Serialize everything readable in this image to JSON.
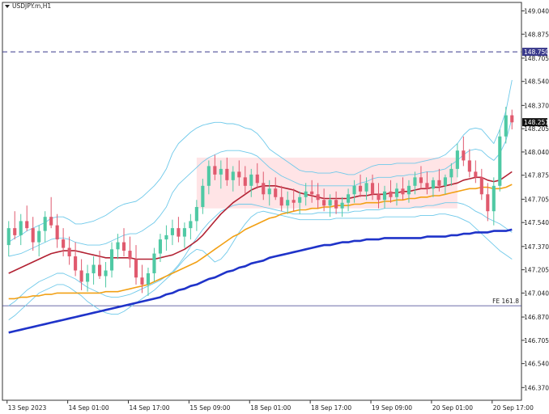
{
  "chart_data": {
    "type": "candlestick",
    "title": "USDJPY.m,H1",
    "price_labels": [
      "149.040",
      "148.875",
      "148.705",
      "148.540",
      "148.370",
      "148.205",
      "148.040",
      "147.875",
      "147.705",
      "147.540",
      "147.370",
      "147.205",
      "147.040",
      "146.870",
      "146.705",
      "146.540",
      "146.370"
    ],
    "price_values": [
      149.04,
      148.875,
      148.705,
      148.54,
      148.37,
      148.205,
      148.04,
      147.875,
      147.705,
      147.54,
      147.37,
      147.205,
      147.04,
      146.87,
      146.705,
      146.54,
      146.37
    ],
    "ylim": [
      146.28,
      149.1
    ],
    "time_labels": [
      "13 Sep 2023",
      "14 Sep 01:00",
      "14 Sep 17:00",
      "15 Sep 09:00",
      "18 Sep 01:00",
      "18 Sep 17:00",
      "19 Sep 09:00",
      "20 Sep 01:00",
      "20 Sep 17:00"
    ],
    "current_price": "148.251",
    "current_price_value": 148.251,
    "hline_level": "148.750",
    "hline_level_value": 148.75,
    "fib_label": "FE 161.8",
    "fib_value": 146.95,
    "ohlc": [
      [
        147.38,
        147.55,
        147.3,
        147.5
      ],
      [
        147.5,
        147.62,
        147.42,
        147.45
      ],
      [
        147.45,
        147.6,
        147.38,
        147.55
      ],
      [
        147.55,
        147.66,
        147.48,
        147.5
      ],
      [
        147.5,
        147.58,
        147.34,
        147.4
      ],
      [
        147.4,
        147.52,
        147.3,
        147.48
      ],
      [
        147.48,
        147.62,
        147.4,
        147.58
      ],
      [
        147.58,
        147.72,
        147.5,
        147.52
      ],
      [
        147.52,
        147.6,
        147.36,
        147.42
      ],
      [
        147.42,
        147.5,
        147.3,
        147.36
      ],
      [
        147.36,
        147.44,
        147.24,
        147.3
      ],
      [
        147.3,
        147.4,
        147.16,
        147.2
      ],
      [
        147.2,
        147.28,
        147.06,
        147.12
      ],
      [
        147.12,
        147.24,
        147.05,
        147.18
      ],
      [
        147.18,
        147.3,
        147.1,
        147.24
      ],
      [
        147.24,
        147.34,
        147.14,
        147.16
      ],
      [
        147.16,
        147.26,
        147.08,
        147.2
      ],
      [
        147.2,
        147.4,
        147.15,
        147.35
      ],
      [
        147.35,
        147.46,
        147.28,
        147.4
      ],
      [
        147.4,
        147.5,
        147.3,
        147.34
      ],
      [
        147.34,
        147.44,
        147.22,
        147.28
      ],
      [
        147.28,
        147.38,
        147.1,
        147.15
      ],
      [
        147.15,
        147.24,
        147.04,
        147.1
      ],
      [
        147.1,
        147.22,
        147.02,
        147.18
      ],
      [
        147.18,
        147.36,
        147.12,
        147.32
      ],
      [
        147.32,
        147.46,
        147.26,
        147.42
      ],
      [
        147.42,
        147.52,
        147.34,
        147.45
      ],
      [
        147.45,
        147.56,
        147.38,
        147.5
      ],
      [
        147.5,
        147.58,
        147.4,
        147.44
      ],
      [
        147.44,
        147.54,
        147.36,
        147.5
      ],
      [
        147.5,
        147.6,
        147.42,
        147.55
      ],
      [
        147.55,
        147.7,
        147.48,
        147.65
      ],
      [
        147.65,
        147.85,
        147.6,
        147.8
      ],
      [
        147.8,
        147.98,
        147.74,
        147.94
      ],
      [
        147.94,
        148.02,
        147.84,
        147.88
      ],
      [
        147.88,
        147.98,
        147.78,
        147.92
      ],
      [
        147.92,
        148.0,
        147.8,
        147.84
      ],
      [
        147.84,
        147.94,
        147.76,
        147.9
      ],
      [
        147.9,
        147.98,
        147.8,
        147.86
      ],
      [
        147.86,
        147.94,
        147.74,
        147.8
      ],
      [
        147.8,
        147.92,
        147.72,
        147.88
      ],
      [
        147.88,
        147.96,
        147.78,
        147.82
      ],
      [
        147.82,
        147.9,
        147.7,
        147.74
      ],
      [
        147.74,
        147.84,
        147.66,
        147.78
      ],
      [
        147.78,
        147.86,
        147.7,
        147.72
      ],
      [
        147.72,
        147.8,
        147.62,
        147.66
      ],
      [
        147.66,
        147.76,
        147.6,
        147.7
      ],
      [
        147.7,
        147.78,
        147.62,
        147.68
      ],
      [
        147.68,
        147.76,
        147.6,
        147.72
      ],
      [
        147.72,
        147.82,
        147.66,
        147.76
      ],
      [
        147.76,
        147.84,
        147.68,
        147.74
      ],
      [
        147.74,
        147.82,
        147.64,
        147.7
      ],
      [
        147.7,
        147.78,
        147.62,
        147.66
      ],
      [
        147.66,
        147.74,
        147.58,
        147.7
      ],
      [
        147.7,
        147.76,
        147.6,
        147.64
      ],
      [
        147.64,
        147.72,
        147.58,
        147.68
      ],
      [
        147.68,
        147.78,
        147.62,
        147.74
      ],
      [
        147.74,
        147.84,
        147.68,
        147.8
      ],
      [
        147.8,
        147.88,
        147.72,
        147.76
      ],
      [
        147.76,
        147.86,
        147.7,
        147.82
      ],
      [
        147.82,
        147.88,
        147.7,
        147.74
      ],
      [
        147.74,
        147.82,
        147.64,
        147.7
      ],
      [
        147.7,
        147.8,
        147.64,
        147.76
      ],
      [
        147.76,
        147.84,
        147.68,
        147.72
      ],
      [
        147.72,
        147.82,
        147.66,
        147.78
      ],
      [
        147.78,
        147.86,
        147.7,
        147.74
      ],
      [
        147.74,
        147.84,
        147.68,
        147.8
      ],
      [
        147.8,
        147.9,
        147.74,
        147.86
      ],
      [
        147.86,
        147.94,
        147.78,
        147.82
      ],
      [
        147.82,
        147.9,
        147.74,
        147.78
      ],
      [
        147.78,
        147.86,
        147.72,
        147.84
      ],
      [
        147.84,
        147.92,
        147.76,
        147.8
      ],
      [
        147.8,
        147.88,
        147.74,
        147.86
      ],
      [
        147.86,
        147.96,
        147.8,
        147.92
      ],
      [
        147.92,
        148.1,
        147.86,
        148.05
      ],
      [
        148.05,
        148.15,
        147.94,
        147.98
      ],
      [
        147.98,
        148.06,
        147.86,
        147.9
      ],
      [
        147.9,
        147.98,
        147.82,
        147.86
      ],
      [
        147.86,
        147.92,
        147.7,
        147.74
      ],
      [
        147.74,
        147.82,
        147.55,
        147.62
      ],
      [
        147.62,
        147.86,
        147.52,
        147.8
      ],
      [
        147.8,
        148.2,
        147.76,
        148.15
      ],
      [
        148.15,
        148.36,
        148.1,
        148.3
      ],
      [
        148.3,
        148.34,
        148.2,
        148.25
      ]
    ],
    "ma_red": [
      147.18,
      147.2,
      147.22,
      147.24,
      147.26,
      147.28,
      147.3,
      147.32,
      147.33,
      147.34,
      147.34,
      147.34,
      147.33,
      147.32,
      147.31,
      147.3,
      147.29,
      147.29,
      147.29,
      147.29,
      147.29,
      147.28,
      147.28,
      147.28,
      147.28,
      147.29,
      147.3,
      147.31,
      147.33,
      147.35,
      147.38,
      147.41,
      147.45,
      147.5,
      147.55,
      147.6,
      147.64,
      147.68,
      147.71,
      147.74,
      147.77,
      147.79,
      147.8,
      147.8,
      147.8,
      147.79,
      147.78,
      147.77,
      147.75,
      147.74,
      147.73,
      147.72,
      147.71,
      147.71,
      147.71,
      147.71,
      147.71,
      147.72,
      147.73,
      147.73,
      147.74,
      147.74,
      147.74,
      147.75,
      147.75,
      147.76,
      147.76,
      147.77,
      147.78,
      147.78,
      147.79,
      147.79,
      147.8,
      147.81,
      147.82,
      147.84,
      147.85,
      147.86,
      147.86,
      147.84,
      147.83,
      147.84,
      147.87,
      147.9
    ],
    "ma_orange": [
      147.0,
      147.0,
      147.01,
      147.01,
      147.02,
      147.02,
      147.03,
      147.03,
      147.04,
      147.04,
      147.04,
      147.04,
      147.04,
      147.04,
      147.04,
      147.04,
      147.05,
      147.05,
      147.05,
      147.06,
      147.07,
      147.08,
      147.09,
      147.1,
      147.12,
      147.14,
      147.16,
      147.18,
      147.2,
      147.22,
      147.24,
      147.26,
      147.29,
      147.32,
      147.35,
      147.38,
      147.41,
      147.44,
      147.46,
      147.49,
      147.51,
      147.53,
      147.55,
      147.57,
      147.58,
      147.6,
      147.61,
      147.62,
      147.63,
      147.63,
      147.64,
      147.64,
      147.65,
      147.65,
      147.66,
      147.66,
      147.66,
      147.67,
      147.67,
      147.68,
      147.68,
      147.68,
      147.69,
      147.69,
      147.7,
      147.7,
      147.71,
      147.71,
      147.72,
      147.72,
      147.73,
      147.73,
      147.74,
      147.75,
      147.76,
      147.77,
      147.78,
      147.78,
      147.79,
      147.79,
      147.78,
      147.78,
      147.79,
      147.81
    ],
    "ma_blue": [
      146.76,
      146.77,
      146.78,
      146.79,
      146.8,
      146.81,
      146.82,
      146.83,
      146.84,
      146.85,
      146.86,
      146.87,
      146.88,
      146.89,
      146.9,
      146.91,
      146.92,
      146.93,
      146.94,
      146.95,
      146.96,
      146.97,
      146.98,
      146.99,
      147.0,
      147.01,
      147.03,
      147.04,
      147.06,
      147.07,
      147.09,
      147.1,
      147.12,
      147.14,
      147.15,
      147.17,
      147.19,
      147.2,
      147.22,
      147.23,
      147.25,
      147.26,
      147.27,
      147.29,
      147.3,
      147.31,
      147.32,
      147.33,
      147.34,
      147.35,
      147.36,
      147.37,
      147.38,
      147.38,
      147.39,
      147.4,
      147.4,
      147.41,
      147.41,
      147.42,
      147.42,
      147.42,
      147.43,
      147.43,
      147.43,
      147.43,
      147.43,
      147.43,
      147.43,
      147.44,
      147.44,
      147.44,
      147.44,
      147.45,
      147.45,
      147.46,
      147.46,
      147.47,
      147.47,
      147.47,
      147.48,
      147.48,
      147.48,
      147.49
    ],
    "bb_up2": [
      147.4,
      147.43,
      147.45,
      147.48,
      147.5,
      147.52,
      147.54,
      147.57,
      147.58,
      147.58,
      147.56,
      147.53,
      147.53,
      147.54,
      147.55,
      147.57,
      147.59,
      147.62,
      147.65,
      147.67,
      147.68,
      147.69,
      147.72,
      147.76,
      147.8,
      147.85,
      147.92,
      148.03,
      148.1,
      148.14,
      148.18,
      148.21,
      148.23,
      148.24,
      148.25,
      148.25,
      148.24,
      148.24,
      148.23,
      148.21,
      148.2,
      148.17,
      148.12,
      148.06,
      148.03,
      148.0,
      147.97,
      147.94,
      147.91,
      147.9,
      147.9,
      147.89,
      147.89,
      147.89,
      147.9,
      147.89,
      147.88,
      147.88,
      147.9,
      147.92,
      147.94,
      147.95,
      147.95,
      147.95,
      147.96,
      147.96,
      147.96,
      147.96,
      147.97,
      147.98,
      147.99,
      148.0,
      148.02,
      148.06,
      148.1,
      148.16,
      148.2,
      148.21,
      148.2,
      148.15,
      148.1,
      148.2,
      148.33,
      148.55
    ],
    "bb_up1": [
      147.3,
      147.31,
      147.32,
      147.34,
      147.36,
      147.38,
      147.4,
      147.42,
      147.43,
      147.43,
      147.42,
      147.4,
      147.39,
      147.38,
      147.38,
      147.38,
      147.39,
      147.41,
      147.43,
      147.45,
      147.46,
      147.46,
      147.48,
      147.51,
      147.54,
      147.59,
      147.65,
      147.75,
      147.81,
      147.85,
      147.89,
      147.93,
      147.97,
      148.0,
      148.02,
      148.04,
      148.05,
      148.05,
      148.05,
      148.04,
      148.03,
      148.01,
      147.97,
      147.93,
      147.9,
      147.87,
      147.85,
      147.83,
      147.81,
      147.8,
      147.8,
      147.8,
      147.8,
      147.8,
      147.8,
      147.8,
      147.8,
      147.8,
      147.82,
      147.83,
      147.85,
      147.86,
      147.86,
      147.86,
      147.87,
      147.87,
      147.88,
      147.88,
      147.89,
      147.9,
      147.9,
      147.91,
      147.92,
      147.95,
      147.98,
      148.02,
      148.05,
      148.06,
      148.05,
      148.01,
      147.98,
      148.03,
      148.12,
      148.28
    ],
    "bb_lo1": [
      146.95,
      146.98,
      147.02,
      147.06,
      147.09,
      147.12,
      147.14,
      147.16,
      147.18,
      147.18,
      147.16,
      147.14,
      147.11,
      147.08,
      147.06,
      147.04,
      147.02,
      147.01,
      147.01,
      147.02,
      147.03,
      147.05,
      147.07,
      147.09,
      147.11,
      147.13,
      147.16,
      147.19,
      147.24,
      147.3,
      147.37,
      147.43,
      147.49,
      147.54,
      147.58,
      147.62,
      147.64,
      147.66,
      147.67,
      147.67,
      147.67,
      147.66,
      147.65,
      147.64,
      147.63,
      147.62,
      147.61,
      147.6,
      147.6,
      147.6,
      147.6,
      147.61,
      147.61,
      147.61,
      147.61,
      147.61,
      147.61,
      147.62,
      147.62,
      147.63,
      147.63,
      147.63,
      147.64,
      147.64,
      147.64,
      147.64,
      147.64,
      147.65,
      147.65,
      147.66,
      147.66,
      147.67,
      147.68,
      147.68,
      147.68,
      147.67,
      147.65,
      147.62,
      147.6,
      147.57,
      147.55,
      147.53,
      147.5,
      147.47
    ],
    "bb_lo2": [
      146.85,
      146.88,
      146.92,
      146.96,
      147.0,
      147.04,
      147.06,
      147.08,
      147.1,
      147.1,
      147.08,
      147.05,
      147.02,
      146.98,
      146.95,
      146.92,
      146.9,
      146.89,
      146.89,
      146.91,
      146.94,
      146.97,
      147.0,
      147.03,
      147.06,
      147.1,
      147.14,
      147.18,
      147.23,
      147.28,
      147.32,
      147.35,
      147.34,
      147.3,
      147.26,
      147.28,
      147.33,
      147.4,
      147.47,
      147.53,
      147.58,
      147.61,
      147.62,
      147.61,
      147.6,
      147.59,
      147.58,
      147.57,
      147.56,
      147.56,
      147.56,
      147.56,
      147.56,
      147.56,
      147.57,
      147.57,
      147.57,
      147.57,
      147.57,
      147.57,
      147.57,
      147.57,
      147.58,
      147.58,
      147.58,
      147.58,
      147.58,
      147.58,
      147.59,
      147.59,
      147.59,
      147.6,
      147.6,
      147.59,
      147.58,
      147.56,
      147.54,
      147.5,
      147.46,
      147.42,
      147.38,
      147.34,
      147.31,
      147.28
    ]
  },
  "colors": {
    "bull": "#4fc9a4",
    "bear": "#e05a6e",
    "hline": "#3a3a8c",
    "fib": "#3a3a8c",
    "ma_red": "#b22233",
    "ma_orange": "#f2a014",
    "ma_blue": "#1f33c9",
    "bands": "#6fc9ea",
    "shade": "#ffd8dc"
  },
  "icons": {
    "menu": "triangle-down-icon"
  }
}
